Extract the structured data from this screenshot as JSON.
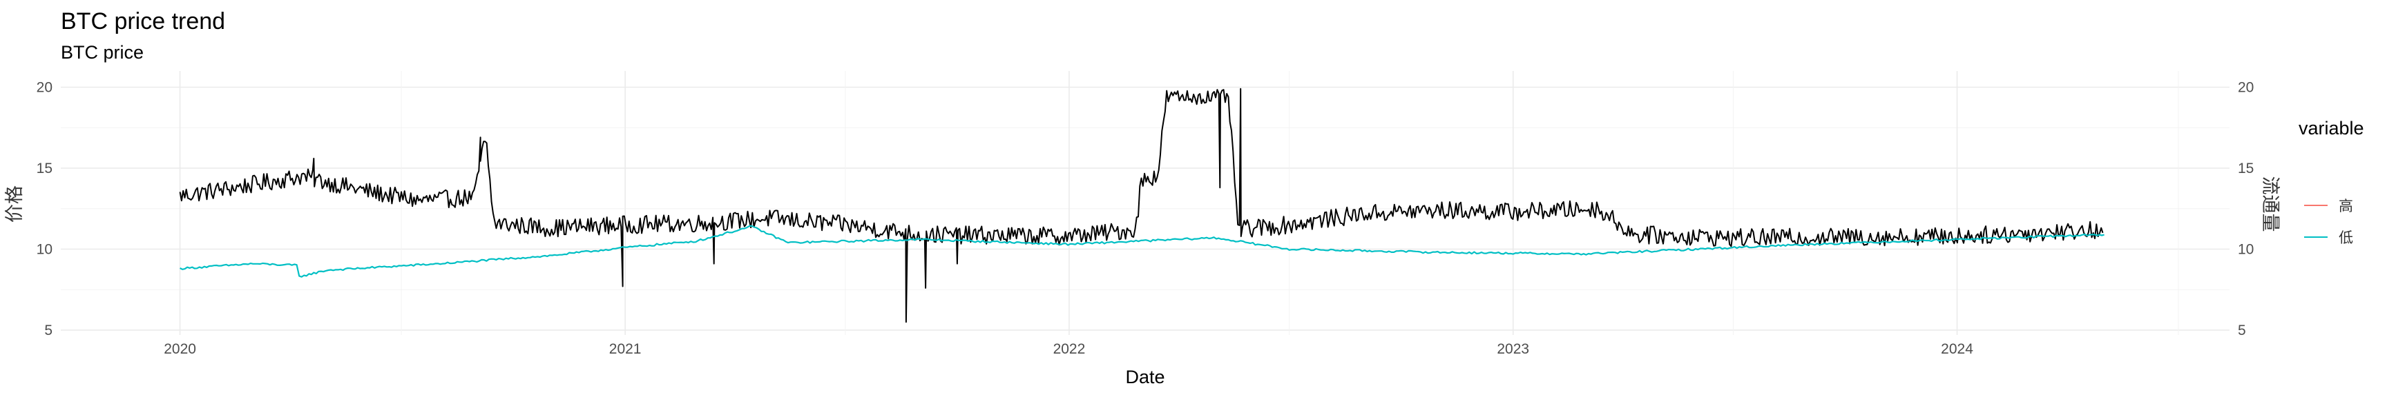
{
  "chart_data": {
    "type": "line",
    "title": "BTC price trend",
    "subtitle": "BTC price",
    "xlabel": "Date",
    "ylabel": "价格",
    "ylabel_right": "流通量",
    "x_ticks": [
      "2020",
      "2021",
      "2022",
      "2023",
      "2024"
    ],
    "xlim": [
      "2019-09-25",
      "2024-08-12"
    ],
    "y_ticks": [
      5,
      10,
      15,
      20
    ],
    "ylim": [
      4.7,
      21.0
    ],
    "y2_ticks": [
      5,
      10,
      15,
      20
    ],
    "grid": true,
    "legend": {
      "title": "variable",
      "position": "right",
      "items": [
        {
          "label": "高",
          "color": "#F8766D"
        },
        {
          "label": "低",
          "color": "#00BFC4"
        }
      ]
    },
    "series": [
      {
        "color": "#000000",
        "style": "noisy",
        "points": [
          [
            "2020-01-01",
            13.3
          ],
          [
            "2020-02-15",
            13.8
          ],
          [
            "2020-04-10",
            14.5
          ],
          [
            "2020-06-01",
            13.6
          ],
          [
            "2020-07-15",
            13.0
          ],
          [
            "2020-08-30",
            13.2
          ],
          [
            "2020-09-06",
            16.3
          ],
          [
            "2020-09-09",
            16.4
          ],
          [
            "2020-09-15",
            11.6
          ],
          [
            "2020-11-01",
            11.3
          ],
          [
            "2020-12-28",
            11.5
          ],
          [
            "2021-03-01",
            11.6
          ],
          [
            "2021-05-01",
            11.9
          ],
          [
            "2021-07-01",
            11.5
          ],
          [
            "2021-09-01",
            10.9
          ],
          [
            "2022-01-01",
            10.8
          ],
          [
            "2022-02-25",
            11.2
          ],
          [
            "2022-03-01",
            14.2
          ],
          [
            "2022-03-15",
            14.6
          ],
          [
            "2022-03-22",
            19.4
          ],
          [
            "2022-05-12",
            19.4
          ],
          [
            "2022-05-20",
            11.2
          ],
          [
            "2022-07-01",
            11.5
          ],
          [
            "2022-09-01",
            12.2
          ],
          [
            "2022-11-01",
            12.4
          ],
          [
            "2023-01-01",
            12.3
          ],
          [
            "2023-03-12",
            12.5
          ],
          [
            "2023-04-10",
            10.9
          ],
          [
            "2023-07-01",
            10.7
          ],
          [
            "2024-01-01",
            10.8
          ],
          [
            "2024-05-01",
            11.2
          ]
        ],
        "spikes": [
          [
            "2020-04-20",
            15.6
          ],
          [
            "2020-09-04",
            16.9
          ],
          [
            "2020-12-30",
            7.7
          ],
          [
            "2021-03-15",
            9.1
          ],
          [
            "2021-08-20",
            5.5
          ],
          [
            "2021-09-05",
            7.6
          ],
          [
            "2021-10-01",
            9.1
          ],
          [
            "2022-05-05",
            13.8
          ],
          [
            "2022-05-22",
            19.9
          ]
        ]
      },
      {
        "name": "低",
        "color": "#00BFC4",
        "style": "smooth",
        "points": [
          [
            "2020-01-01",
            8.8
          ],
          [
            "2020-03-01",
            9.1
          ],
          [
            "2020-04-06",
            9.0
          ],
          [
            "2020-04-08",
            8.3
          ],
          [
            "2020-05-01",
            8.7
          ],
          [
            "2020-08-01",
            9.1
          ],
          [
            "2020-11-01",
            9.6
          ],
          [
            "2021-01-01",
            10.1
          ],
          [
            "2021-03-01",
            10.5
          ],
          [
            "2021-04-15",
            11.4
          ],
          [
            "2021-05-15",
            10.4
          ],
          [
            "2021-09-01",
            10.6
          ],
          [
            "2022-01-01",
            10.3
          ],
          [
            "2022-03-01",
            10.5
          ],
          [
            "2022-05-01",
            10.7
          ],
          [
            "2022-07-01",
            10.0
          ],
          [
            "2022-11-01",
            9.8
          ],
          [
            "2023-03-01",
            9.7
          ],
          [
            "2023-09-01",
            10.3
          ],
          [
            "2024-01-01",
            10.6
          ],
          [
            "2024-05-01",
            10.9
          ]
        ]
      }
    ]
  }
}
